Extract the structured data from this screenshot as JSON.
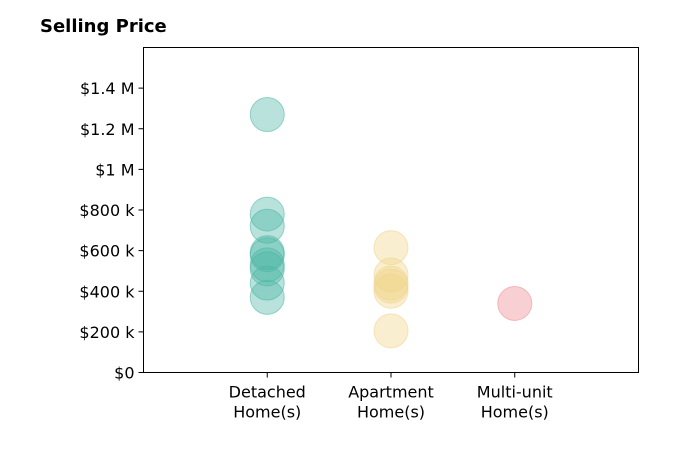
{
  "chart_data": {
    "type": "scatter",
    "title": "Selling Price",
    "xlabel": "",
    "ylabel": "",
    "categories": [
      "Detached\nHome(s)",
      "Apartment\nHome(s)",
      "Multi-unit\nHome(s)"
    ],
    "xlim": [
      0,
      4
    ],
    "ylim": [
      0,
      1600000
    ],
    "y_ticks": [
      0,
      200000,
      400000,
      600000,
      800000,
      1000000,
      1200000,
      1400000
    ],
    "y_tick_labels": [
      "$0",
      "$200 k",
      "$400 k",
      "$600 k",
      "$800 k",
      "$1 M",
      "$1.2 M",
      "$1.4 M"
    ],
    "grid": false,
    "series": [
      {
        "category_index": 0,
        "color": "#4DB6A6",
        "values": [
          1270000,
          780000,
          720000,
          590000,
          580000,
          530000,
          510000,
          440000,
          370000
        ]
      },
      {
        "category_index": 1,
        "color": "#F0D48A",
        "values": [
          615000,
          480000,
          440000,
          425000,
          400000,
          205000
        ]
      },
      {
        "category_index": 2,
        "color": "#EE8A94",
        "values": [
          340000
        ]
      }
    ]
  }
}
